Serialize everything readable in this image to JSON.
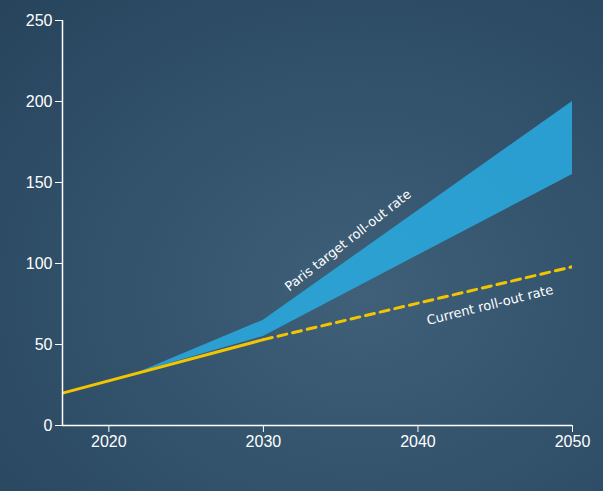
{
  "chart_data": {
    "type": "line",
    "xlim": [
      2017,
      2050
    ],
    "xticks": [
      2020,
      2030,
      2040,
      2050
    ],
    "ylim": [
      0,
      250
    ],
    "yticks": [
      0,
      50,
      100,
      150,
      200,
      250
    ],
    "series": [
      {
        "name": "Paris target roll-out rate",
        "type": "area",
        "color": "#29abe2",
        "x": [
          2022,
          2030,
          2050
        ],
        "low": [
          33,
          55,
          155
        ],
        "high": [
          33,
          65,
          200
        ]
      },
      {
        "name": "Current roll-out rate",
        "type": "line",
        "color": "#f2c500",
        "x": [
          2017,
          2030,
          2050
        ],
        "values": [
          20,
          53,
          98
        ],
        "line_style": [
          "solid",
          "dashed"
        ]
      }
    ]
  }
}
